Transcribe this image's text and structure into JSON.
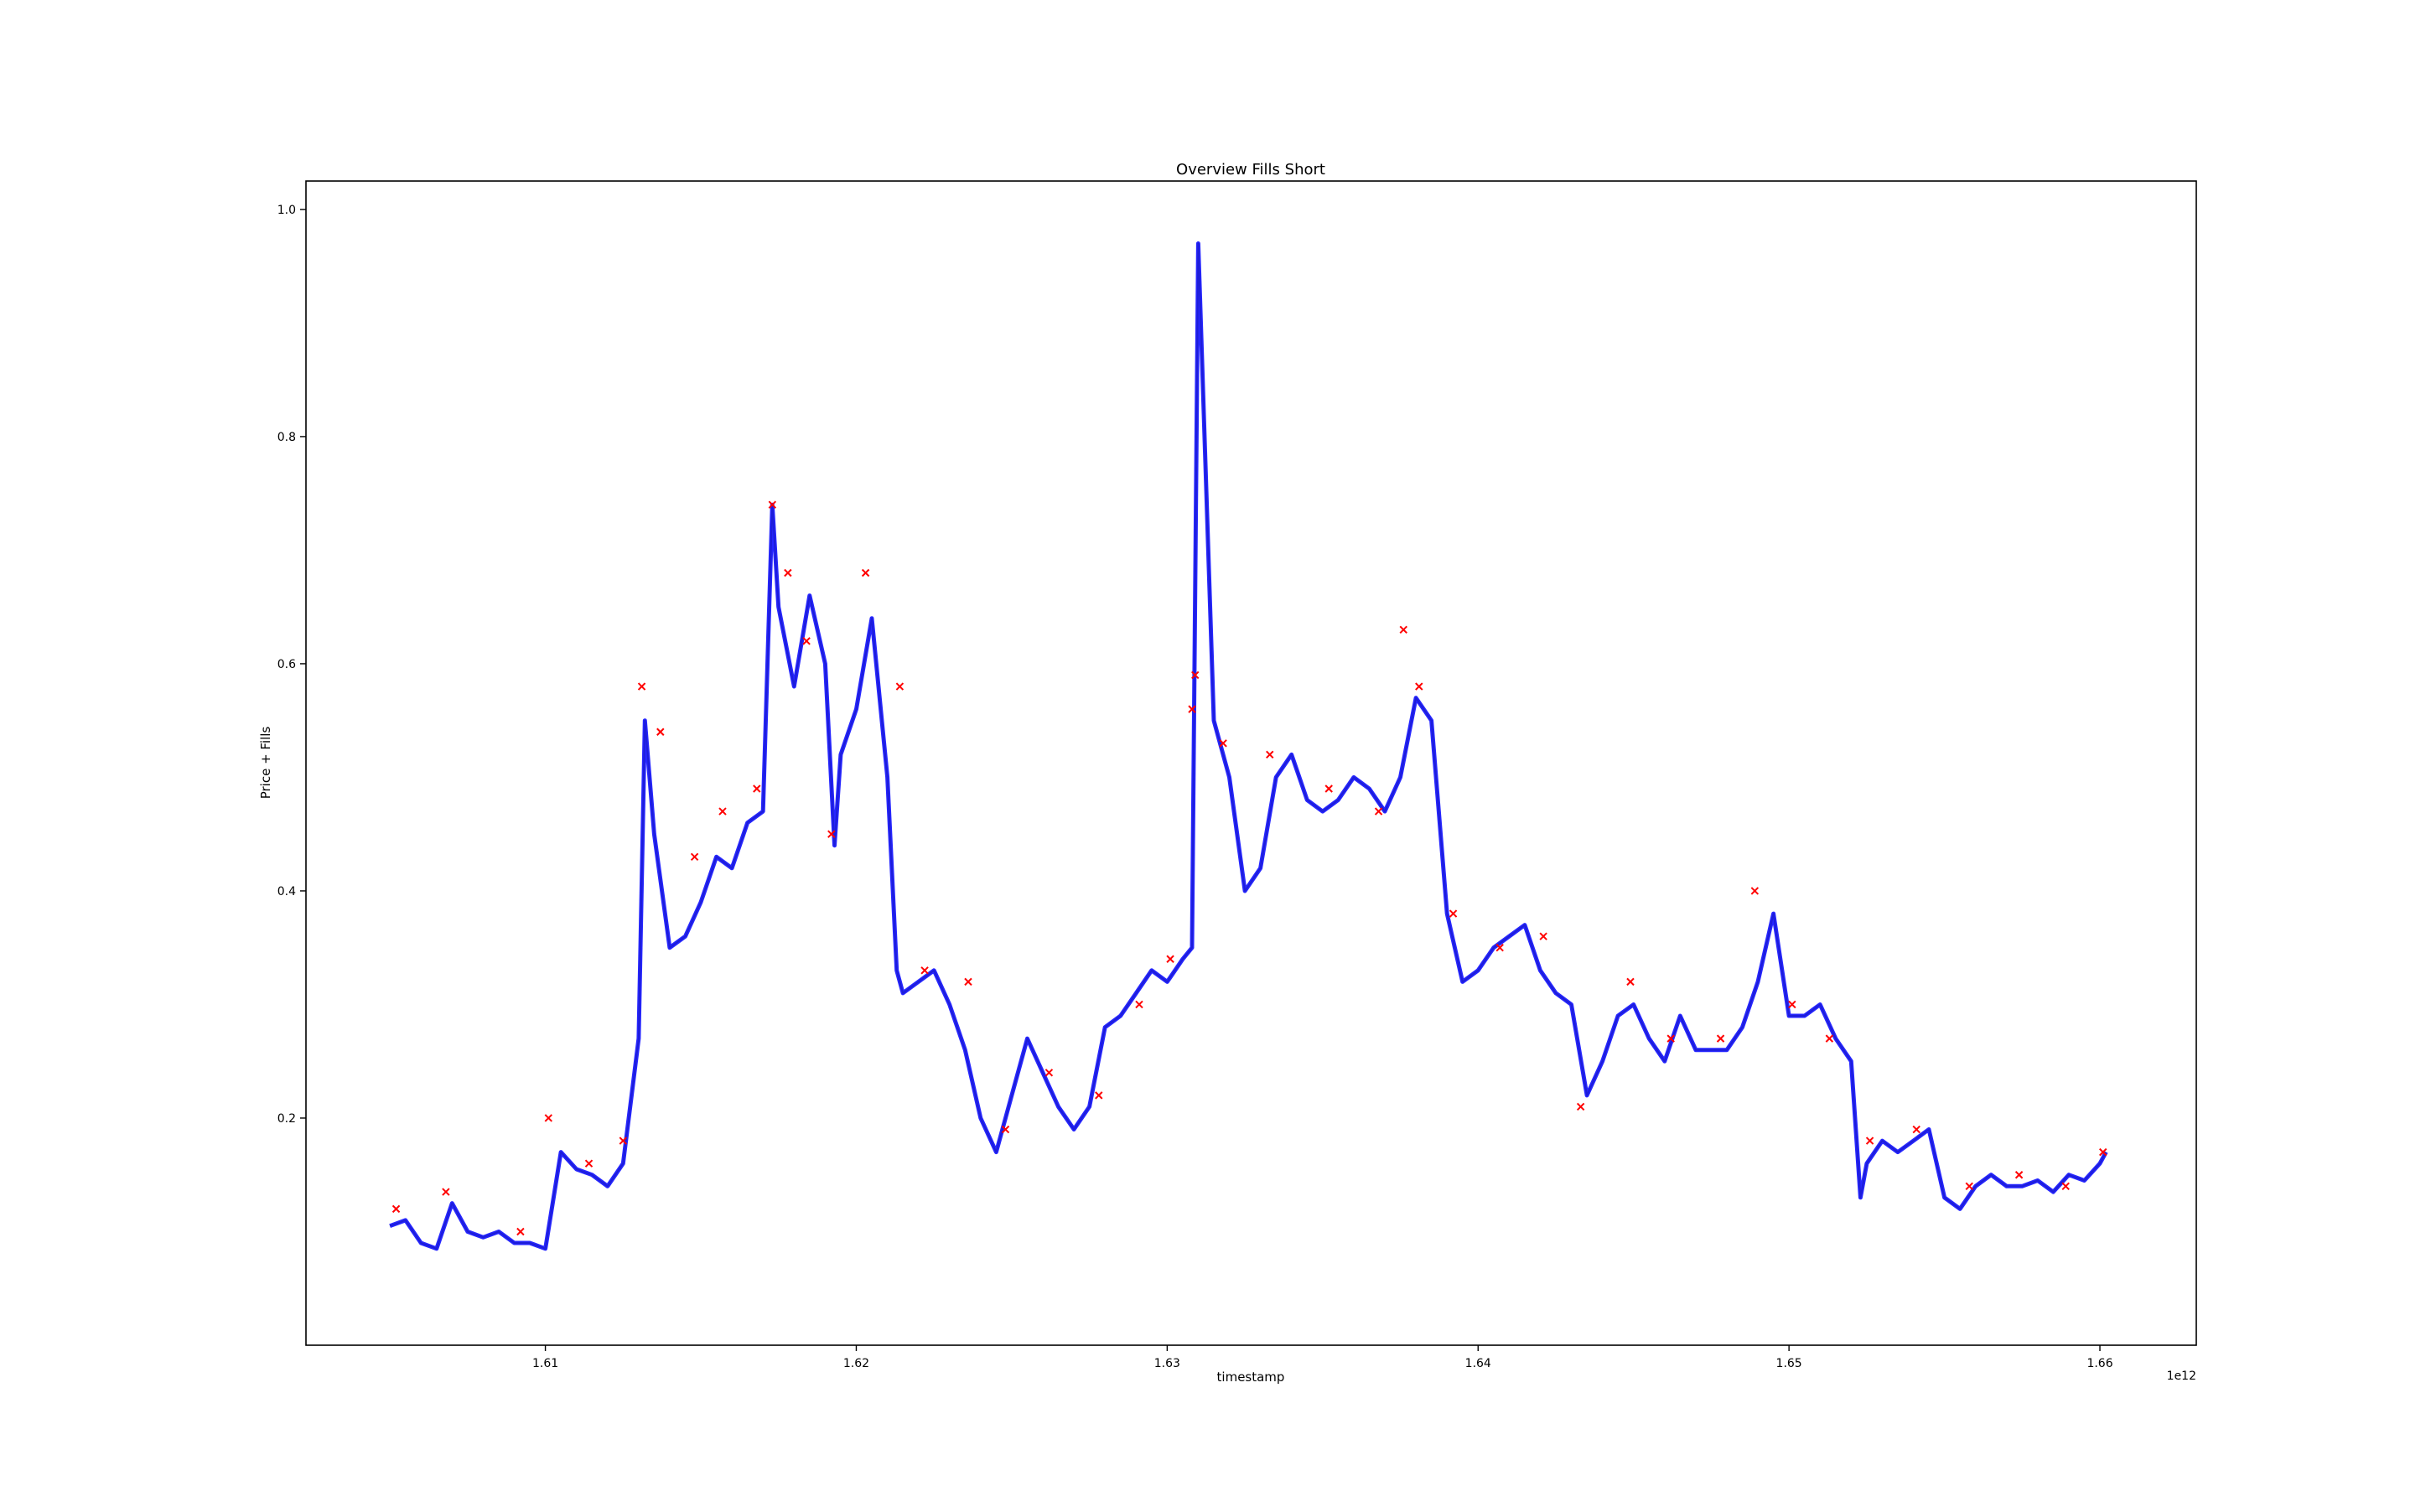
{
  "chart_data": {
    "type": "line",
    "title": "Overview Fills Short",
    "xlabel": "timestamp",
    "ylabel": "Price + Fills",
    "x_offset_label": "1e12",
    "xlim": [
      1.6023,
      1.6631
    ],
    "ylim": [
      0.0,
      1.025
    ],
    "x_ticks": [
      1.61,
      1.62,
      1.63,
      1.64,
      1.65,
      1.66
    ],
    "x_tick_labels": [
      "1.61",
      "1.62",
      "1.63",
      "1.64",
      "1.65",
      "1.66"
    ],
    "y_ticks": [
      0.2,
      0.4,
      0.6,
      0.8,
      1.0
    ],
    "y_tick_labels": [
      "0.2",
      "0.4",
      "0.6",
      "0.8",
      "1.0"
    ],
    "grid": false,
    "colors": {
      "price": "#bfbf00",
      "fills_blue": "#0000ff",
      "fills_red": "#ff0000"
    },
    "series": [
      {
        "color": "#bfbf00",
        "x": [
          1.605,
          1.6055,
          1.606,
          1.6065,
          1.607,
          1.6075,
          1.608,
          1.6085,
          1.609,
          1.6095,
          1.61,
          1.6105,
          1.611,
          1.6115,
          1.612,
          1.6125,
          1.613,
          1.6132,
          1.6135,
          1.614,
          1.6145,
          1.615,
          1.6155,
          1.616,
          1.6165,
          1.617,
          1.6173,
          1.6175,
          1.618,
          1.6185,
          1.619,
          1.6193,
          1.6195,
          1.62,
          1.6205,
          1.621,
          1.6213,
          1.6215,
          1.622,
          1.6225,
          1.623,
          1.6235,
          1.624,
          1.6245,
          1.625,
          1.6255,
          1.626,
          1.6265,
          1.627,
          1.6275,
          1.628,
          1.6285,
          1.629,
          1.6295,
          1.63,
          1.6305,
          1.6308,
          1.631,
          1.6315,
          1.632,
          1.6325,
          1.633,
          1.6335,
          1.634,
          1.6345,
          1.635,
          1.6355,
          1.636,
          1.6365,
          1.637,
          1.6375,
          1.638,
          1.6385,
          1.639,
          1.6395,
          1.64,
          1.6405,
          1.641,
          1.6415,
          1.642,
          1.6425,
          1.643,
          1.6435,
          1.644,
          1.6445,
          1.645,
          1.6455,
          1.646,
          1.6465,
          1.647,
          1.6475,
          1.648,
          1.6485,
          1.649,
          1.6495,
          1.65,
          1.6505,
          1.651,
          1.6515,
          1.652,
          1.6523,
          1.6525,
          1.653,
          1.6535,
          1.654,
          1.6545,
          1.655,
          1.6555,
          1.656,
          1.6565,
          1.657,
          1.6575,
          1.658,
          1.6585,
          1.659,
          1.6595,
          1.66,
          1.6602
        ],
        "y": [
          0.105,
          0.11,
          0.09,
          0.085,
          0.125,
          0.1,
          0.095,
          0.1,
          0.09,
          0.09,
          0.085,
          0.17,
          0.155,
          0.15,
          0.14,
          0.16,
          0.27,
          0.55,
          0.45,
          0.35,
          0.36,
          0.39,
          0.43,
          0.42,
          0.46,
          0.47,
          0.74,
          0.65,
          0.58,
          0.66,
          0.6,
          0.44,
          0.52,
          0.56,
          0.64,
          0.5,
          0.33,
          0.31,
          0.32,
          0.33,
          0.3,
          0.26,
          0.2,
          0.17,
          0.22,
          0.27,
          0.24,
          0.21,
          0.19,
          0.21,
          0.28,
          0.29,
          0.31,
          0.33,
          0.32,
          0.34,
          0.35,
          0.97,
          0.55,
          0.5,
          0.4,
          0.42,
          0.5,
          0.52,
          0.48,
          0.47,
          0.48,
          0.5,
          0.49,
          0.47,
          0.5,
          0.57,
          0.55,
          0.38,
          0.32,
          0.33,
          0.35,
          0.36,
          0.37,
          0.33,
          0.31,
          0.3,
          0.22,
          0.25,
          0.29,
          0.3,
          0.27,
          0.25,
          0.29,
          0.26,
          0.26,
          0.26,
          0.28,
          0.32,
          0.38,
          0.29,
          0.29,
          0.3,
          0.27,
          0.25,
          0.13,
          0.16,
          0.18,
          0.17,
          0.18,
          0.19,
          0.13,
          0.12,
          0.14,
          0.15,
          0.14,
          0.14,
          0.145,
          0.135,
          0.15,
          0.145,
          0.16,
          0.17
        ]
      }
    ],
    "fills_x": [
      1.6052,
      1.6068,
      1.6092,
      1.6101,
      1.6114,
      1.6125,
      1.6131,
      1.6137,
      1.6148,
      1.6157,
      1.6168,
      1.6173,
      1.6178,
      1.6184,
      1.6192,
      1.6203,
      1.6214,
      1.6222,
      1.6236,
      1.6248,
      1.6262,
      1.6278,
      1.6291,
      1.6301,
      1.6308,
      1.6309,
      1.6318,
      1.6333,
      1.6352,
      1.6368,
      1.6376,
      1.6381,
      1.6392,
      1.6407,
      1.6421,
      1.6433,
      1.6449,
      1.6462,
      1.6478,
      1.6489,
      1.6501,
      1.6513,
      1.6526,
      1.6541,
      1.6558,
      1.6574,
      1.6589,
      1.6601
    ],
    "fills_y": [
      0.12,
      0.135,
      0.1,
      0.2,
      0.16,
      0.18,
      0.58,
      0.54,
      0.43,
      0.47,
      0.49,
      0.74,
      0.68,
      0.62,
      0.45,
      0.68,
      0.58,
      0.33,
      0.32,
      0.19,
      0.24,
      0.22,
      0.3,
      0.34,
      0.56,
      0.59,
      0.53,
      0.52,
      0.49,
      0.47,
      0.63,
      0.58,
      0.38,
      0.35,
      0.36,
      0.21,
      0.32,
      0.27,
      0.27,
      0.4,
      0.3,
      0.27,
      0.18,
      0.19,
      0.14,
      0.15,
      0.14,
      0.17
    ]
  }
}
